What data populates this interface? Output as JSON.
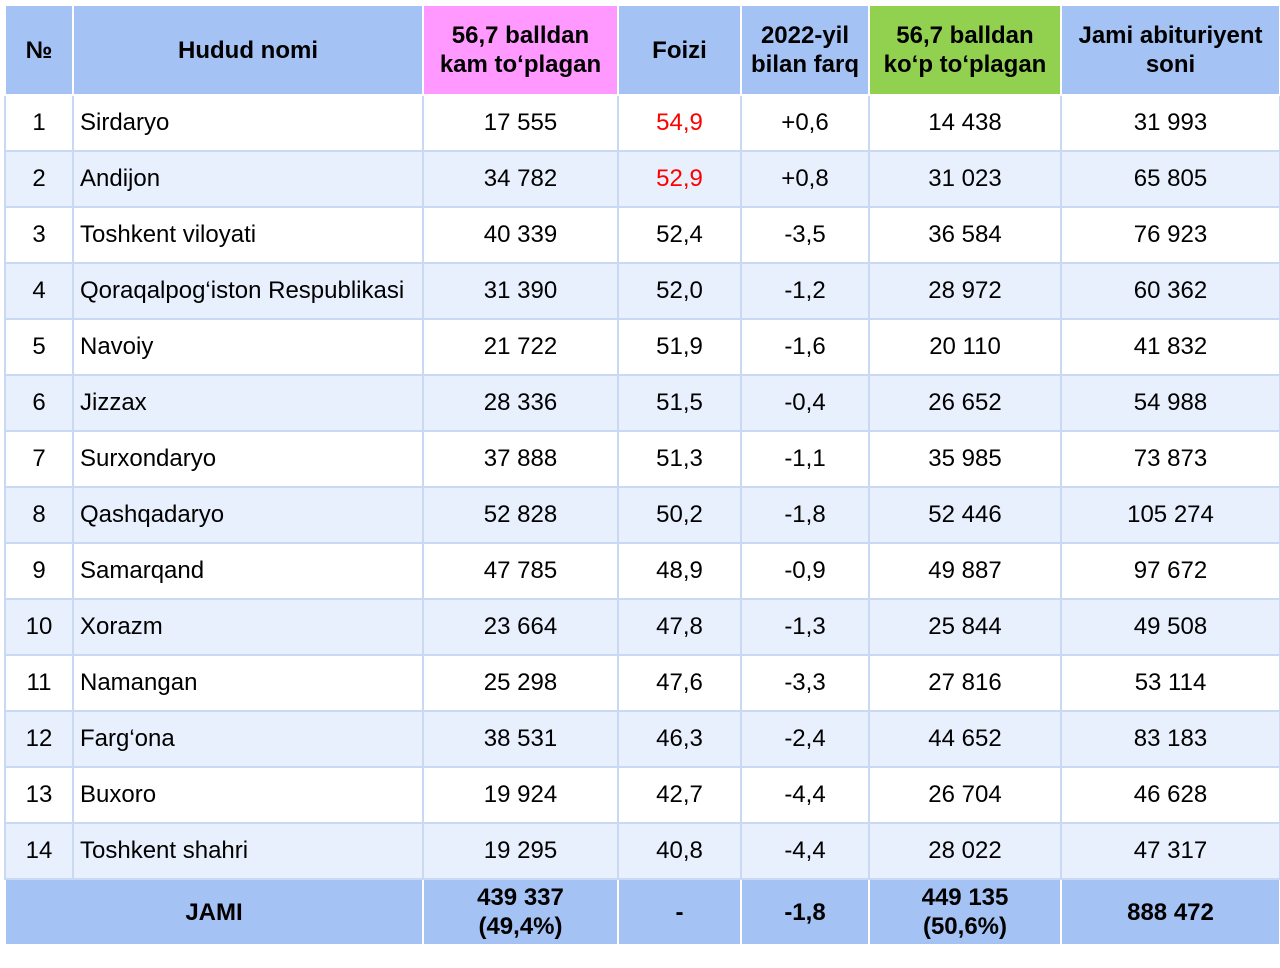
{
  "headers": {
    "no": "№",
    "region": "Hudud nomi",
    "below_line1": "56,7 balldan",
    "below_line2": "kam to‘plagan",
    "percent": "Foizi",
    "diff_line1": "2022-yil",
    "diff_line2": "bilan farq",
    "above_line1": "56,7 balldan",
    "above_line2": "ko‘p to‘plagan",
    "total_line1": "Jami abituriyent",
    "total_line2": "soni"
  },
  "colors": {
    "header_blue": "#a4c2f4",
    "header_pink": "#ff99ff",
    "header_green": "#92d050",
    "highlight_red": "#ff0000"
  },
  "rows": [
    {
      "no": "1",
      "region": "Sirdaryo",
      "below": "17 555",
      "percent": "54,9",
      "diff": "+0,6",
      "above": "14 438",
      "total": "31 993"
    },
    {
      "no": "2",
      "region": "Andijon",
      "below": "34 782",
      "percent": "52,9",
      "diff": "+0,8",
      "above": "31 023",
      "total": "65 805"
    },
    {
      "no": "3",
      "region": "Toshkent viloyati",
      "below": "40 339",
      "percent": "52,4",
      "diff": "-3,5",
      "above": "36 584",
      "total": "76 923"
    },
    {
      "no": "4",
      "region": "Qoraqalpog‘iston Respublikasi",
      "below": "31 390",
      "percent": "52,0",
      "diff": "-1,2",
      "above": "28 972",
      "total": "60 362"
    },
    {
      "no": "5",
      "region": "Navoiy",
      "below": "21 722",
      "percent": "51,9",
      "diff": "-1,6",
      "above": "20 110",
      "total": "41 832"
    },
    {
      "no": "6",
      "region": "Jizzax",
      "below": "28 336",
      "percent": "51,5",
      "diff": "-0,4",
      "above": "26 652",
      "total": "54 988"
    },
    {
      "no": "7",
      "region": "Surxondaryo",
      "below": "37 888",
      "percent": "51,3",
      "diff": "-1,1",
      "above": "35 985",
      "total": "73 873"
    },
    {
      "no": "8",
      "region": "Qashqadaryo",
      "below": "52 828",
      "percent": "50,2",
      "diff": "-1,8",
      "above": "52 446",
      "total": "105 274"
    },
    {
      "no": "9",
      "region": "Samarqand",
      "below": "47 785",
      "percent": "48,9",
      "diff": "-0,9",
      "above": "49 887",
      "total": "97 672"
    },
    {
      "no": "10",
      "region": "Xorazm",
      "below": "23 664",
      "percent": "47,8",
      "diff": "-1,3",
      "above": "25 844",
      "total": "49 508"
    },
    {
      "no": "11",
      "region": "Namangan",
      "below": "25 298",
      "percent": "47,6",
      "diff": "-3,3",
      "above": "27 816",
      "total": "53 114"
    },
    {
      "no": "12",
      "region": "Farg‘ona",
      "below": "38 531",
      "percent": "46,3",
      "diff": "-2,4",
      "above": "44 652",
      "total": "83 183"
    },
    {
      "no": "13",
      "region": "Buxoro",
      "below": "19 924",
      "percent": "42,7",
      "diff": "-4,4",
      "above": "26 704",
      "total": "46 628"
    },
    {
      "no": "14",
      "region": "Toshkent shahri",
      "below": "19 295",
      "percent": "40,8",
      "diff": "-4,4",
      "above": "28 022",
      "total": "47 317"
    }
  ],
  "totals": {
    "label": "JAMI",
    "below_line1": "439 337",
    "below_line2": "(49,4%)",
    "percent": "-",
    "diff": "-1,8",
    "above_line1": "449 135",
    "above_line2": "(50,6%)",
    "total": "888 472"
  }
}
